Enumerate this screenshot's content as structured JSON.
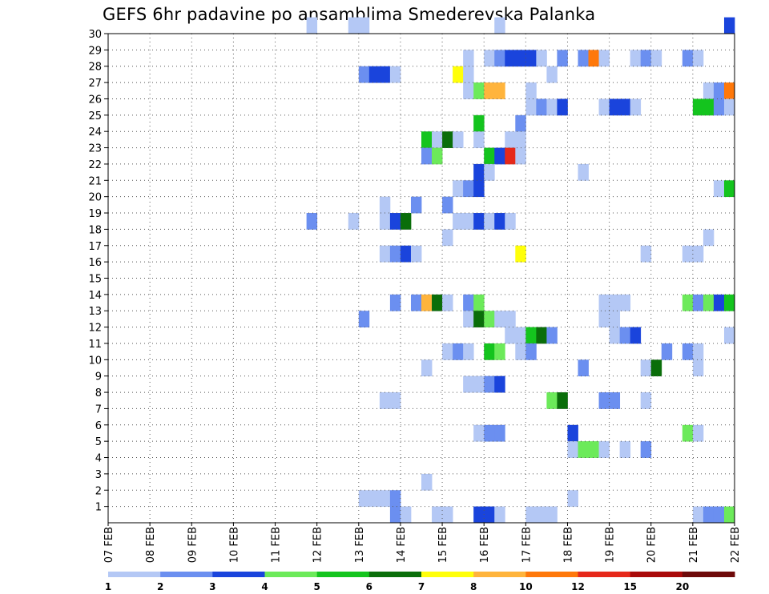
{
  "chart_data": {
    "type": "heatmap",
    "title": "GEFS 6hr padavine po ansamblima Smederevska Palanka",
    "x_ticks": [
      "07 FEB",
      "08 FEB",
      "09 FEB",
      "10 FEB",
      "11 FEB",
      "12 FEB",
      "13 FEB",
      "14 FEB",
      "15 FEB",
      "16 FEB",
      "17 FEB",
      "18 FEB",
      "19 FEB",
      "20 FEB",
      "21 FEB",
      "22 FEB"
    ],
    "y_ticks": [
      "1",
      "2",
      "3",
      "4",
      "5",
      "6",
      "7",
      "8",
      "9",
      "10",
      "11",
      "12",
      "13",
      "14",
      "15",
      "16",
      "17",
      "18",
      "19",
      "20",
      "21",
      "22",
      "23",
      "24",
      "25",
      "26",
      "27",
      "28",
      "29",
      "30"
    ],
    "xlim": [
      "07 FEB 00",
      "22 FEB 00"
    ],
    "ylim": [
      0,
      30
    ],
    "time_step_hours": 6,
    "grid": "dotted",
    "colorbar": {
      "placement": "bottom",
      "labels": [
        "1",
        "2",
        "3",
        "4",
        "5",
        "6",
        "7",
        "8",
        "10",
        "12",
        "15",
        "20"
      ],
      "colors": [
        "#b4c8f5",
        "#6b8ff0",
        "#1a44dc",
        "#6cea5a",
        "#14c41e",
        "#0a6e0a",
        "#ffff0a",
        "#ffb43c",
        "#ff780a",
        "#e6281a",
        "#aa0a0a",
        "#6e0a0a"
      ]
    },
    "points": [
      {
        "m": 30,
        "t": "11 FEB 18",
        "c": 1
      },
      {
        "m": 30,
        "t": "12 FEB 18",
        "c": 1
      },
      {
        "m": 30,
        "t": "13 FEB 00",
        "c": 1
      },
      {
        "m": 30,
        "t": "16 FEB 06",
        "c": 1
      },
      {
        "m": 30,
        "t": "21 FEB 18",
        "c": 3
      },
      {
        "m": 28,
        "t": "15 FEB 12",
        "c": 1
      },
      {
        "m": 28,
        "t": "16 FEB 00",
        "c": 1
      },
      {
        "m": 28,
        "t": "16 FEB 06",
        "c": 2
      },
      {
        "m": 28,
        "t": "16 FEB 12",
        "c": 3
      },
      {
        "m": 28,
        "t": "16 FEB 18",
        "c": 3
      },
      {
        "m": 28,
        "t": "17 FEB 00",
        "c": 3
      },
      {
        "m": 28,
        "t": "17 FEB 06",
        "c": 1
      },
      {
        "m": 28,
        "t": "17 FEB 18",
        "c": 2
      },
      {
        "m": 28,
        "t": "18 FEB 06",
        "c": 2
      },
      {
        "m": 28,
        "t": "18 FEB 12",
        "c": 9
      },
      {
        "m": 28,
        "t": "18 FEB 18",
        "c": 1
      },
      {
        "m": 28,
        "t": "19 FEB 12",
        "c": 1
      },
      {
        "m": 28,
        "t": "19 FEB 18",
        "c": 2
      },
      {
        "m": 28,
        "t": "20 FEB 00",
        "c": 1
      },
      {
        "m": 28,
        "t": "20 FEB 18",
        "c": 2
      },
      {
        "m": 28,
        "t": "21 FEB 00",
        "c": 1
      },
      {
        "m": 27,
        "t": "13 FEB 00",
        "c": 2
      },
      {
        "m": 27,
        "t": "13 FEB 06",
        "c": 3
      },
      {
        "m": 27,
        "t": "13 FEB 12",
        "c": 3
      },
      {
        "m": 27,
        "t": "13 FEB 18",
        "c": 1
      },
      {
        "m": 27,
        "t": "15 FEB 06",
        "c": 7
      },
      {
        "m": 27,
        "t": "15 FEB 12",
        "c": 1
      },
      {
        "m": 27,
        "t": "17 FEB 12",
        "c": 1
      },
      {
        "m": 26,
        "t": "15 FEB 12",
        "c": 1
      },
      {
        "m": 26,
        "t": "15 FEB 18",
        "c": 4
      },
      {
        "m": 26,
        "t": "16 FEB 00",
        "c": 8
      },
      {
        "m": 26,
        "t": "16 FEB 06",
        "c": 8
      },
      {
        "m": 26,
        "t": "17 FEB 00",
        "c": 1
      },
      {
        "m": 26,
        "t": "21 FEB 06",
        "c": 1
      },
      {
        "m": 26,
        "t": "21 FEB 12",
        "c": 2
      },
      {
        "m": 26,
        "t": "21 FEB 18",
        "c": 9
      },
      {
        "m": 25,
        "t": "17 FEB 00",
        "c": 1
      },
      {
        "m": 25,
        "t": "17 FEB 06",
        "c": 2
      },
      {
        "m": 25,
        "t": "17 FEB 12",
        "c": 1
      },
      {
        "m": 25,
        "t": "17 FEB 18",
        "c": 3
      },
      {
        "m": 25,
        "t": "18 FEB 18",
        "c": 1
      },
      {
        "m": 25,
        "t": "19 FEB 00",
        "c": 3
      },
      {
        "m": 25,
        "t": "19 FEB 06",
        "c": 3
      },
      {
        "m": 25,
        "t": "19 FEB 12",
        "c": 1
      },
      {
        "m": 25,
        "t": "21 FEB 00",
        "c": 5
      },
      {
        "m": 25,
        "t": "21 FEB 06",
        "c": 5
      },
      {
        "m": 25,
        "t": "21 FEB 12",
        "c": 2
      },
      {
        "m": 25,
        "t": "21 FEB 18",
        "c": 1
      },
      {
        "m": 24,
        "t": "15 FEB 18",
        "c": 5
      },
      {
        "m": 24,
        "t": "16 FEB 18",
        "c": 2
      },
      {
        "m": 23,
        "t": "14 FEB 12",
        "c": 5
      },
      {
        "m": 23,
        "t": "14 FEB 18",
        "c": 1
      },
      {
        "m": 23,
        "t": "15 FEB 00",
        "c": 6
      },
      {
        "m": 23,
        "t": "15 FEB 06",
        "c": 1
      },
      {
        "m": 23,
        "t": "15 FEB 18",
        "c": 1
      },
      {
        "m": 23,
        "t": "16 FEB 12",
        "c": 1
      },
      {
        "m": 23,
        "t": "16 FEB 18",
        "c": 1
      },
      {
        "m": 22,
        "t": "14 FEB 12",
        "c": 2
      },
      {
        "m": 22,
        "t": "14 FEB 18",
        "c": 4
      },
      {
        "m": 22,
        "t": "16 FEB 00",
        "c": 5
      },
      {
        "m": 22,
        "t": "16 FEB 06",
        "c": 3
      },
      {
        "m": 22,
        "t": "16 FEB 12",
        "c": 10
      },
      {
        "m": 22,
        "t": "16 FEB 18",
        "c": 1
      },
      {
        "m": 21,
        "t": "15 FEB 18",
        "c": 3
      },
      {
        "m": 21,
        "t": "16 FEB 00",
        "c": 1
      },
      {
        "m": 21,
        "t": "18 FEB 06",
        "c": 1
      },
      {
        "m": 20,
        "t": "15 FEB 06",
        "c": 1
      },
      {
        "m": 20,
        "t": "15 FEB 12",
        "c": 2
      },
      {
        "m": 20,
        "t": "15 FEB 18",
        "c": 3
      },
      {
        "m": 20,
        "t": "21 FEB 12",
        "c": 1
      },
      {
        "m": 20,
        "t": "21 FEB 18",
        "c": 5
      },
      {
        "m": 19,
        "t": "13 FEB 12",
        "c": 1
      },
      {
        "m": 19,
        "t": "14 FEB 06",
        "c": 2
      },
      {
        "m": 19,
        "t": "15 FEB 00",
        "c": 2
      },
      {
        "m": 18,
        "t": "11 FEB 18",
        "c": 2
      },
      {
        "m": 18,
        "t": "12 FEB 18",
        "c": 1
      },
      {
        "m": 18,
        "t": "13 FEB 12",
        "c": 1
      },
      {
        "m": 18,
        "t": "13 FEB 18",
        "c": 3
      },
      {
        "m": 18,
        "t": "14 FEB 00",
        "c": 6
      },
      {
        "m": 18,
        "t": "15 FEB 06",
        "c": 1
      },
      {
        "m": 18,
        "t": "15 FEB 12",
        "c": 1
      },
      {
        "m": 18,
        "t": "15 FEB 18",
        "c": 3
      },
      {
        "m": 18,
        "t": "16 FEB 00",
        "c": 1
      },
      {
        "m": 18,
        "t": "16 FEB 06",
        "c": 3
      },
      {
        "m": 18,
        "t": "16 FEB 12",
        "c": 1
      },
      {
        "m": 17,
        "t": "15 FEB 00",
        "c": 1
      },
      {
        "m": 17,
        "t": "21 FEB 06",
        "c": 1
      },
      {
        "m": 16,
        "t": "13 FEB 12",
        "c": 1
      },
      {
        "m": 16,
        "t": "13 FEB 18",
        "c": 2
      },
      {
        "m": 16,
        "t": "14 FEB 00",
        "c": 3
      },
      {
        "m": 16,
        "t": "14 FEB 06",
        "c": 1
      },
      {
        "m": 16,
        "t": "16 FEB 18",
        "c": 7
      },
      {
        "m": 16,
        "t": "19 FEB 18",
        "c": 1
      },
      {
        "m": 16,
        "t": "20 FEB 18",
        "c": 1
      },
      {
        "m": 16,
        "t": "21 FEB 00",
        "c": 1
      },
      {
        "m": 13,
        "t": "13 FEB 18",
        "c": 2
      },
      {
        "m": 13,
        "t": "14 FEB 06",
        "c": 2
      },
      {
        "m": 13,
        "t": "14 FEB 12",
        "c": 8
      },
      {
        "m": 13,
        "t": "14 FEB 18",
        "c": 6
      },
      {
        "m": 13,
        "t": "15 FEB 00",
        "c": 1
      },
      {
        "m": 13,
        "t": "15 FEB 12",
        "c": 2
      },
      {
        "m": 13,
        "t": "15 FEB 18",
        "c": 4
      },
      {
        "m": 13,
        "t": "18 FEB 18",
        "c": 1
      },
      {
        "m": 13,
        "t": "19 FEB 00",
        "c": 1
      },
      {
        "m": 13,
        "t": "19 FEB 06",
        "c": 1
      },
      {
        "m": 13,
        "t": "20 FEB 18",
        "c": 4
      },
      {
        "m": 13,
        "t": "21 FEB 00",
        "c": 2
      },
      {
        "m": 13,
        "t": "21 FEB 06",
        "c": 4
      },
      {
        "m": 13,
        "t": "21 FEB 12",
        "c": 3
      },
      {
        "m": 13,
        "t": "21 FEB 18",
        "c": 5
      },
      {
        "m": 12,
        "t": "13 FEB 00",
        "c": 2
      },
      {
        "m": 12,
        "t": "15 FEB 12",
        "c": 1
      },
      {
        "m": 12,
        "t": "15 FEB 18",
        "c": 6
      },
      {
        "m": 12,
        "t": "16 FEB 00",
        "c": 4
      },
      {
        "m": 12,
        "t": "16 FEB 06",
        "c": 1
      },
      {
        "m": 12,
        "t": "16 FEB 12",
        "c": 1
      },
      {
        "m": 12,
        "t": "18 FEB 18",
        "c": 1
      },
      {
        "m": 12,
        "t": "19 FEB 00",
        "c": 1
      },
      {
        "m": 11,
        "t": "16 FEB 12",
        "c": 1
      },
      {
        "m": 11,
        "t": "16 FEB 18",
        "c": 1
      },
      {
        "m": 11,
        "t": "17 FEB 00",
        "c": 5
      },
      {
        "m": 11,
        "t": "17 FEB 06",
        "c": 6
      },
      {
        "m": 11,
        "t": "17 FEB 12",
        "c": 2
      },
      {
        "m": 11,
        "t": "19 FEB 00",
        "c": 1
      },
      {
        "m": 11,
        "t": "19 FEB 06",
        "c": 2
      },
      {
        "m": 11,
        "t": "19 FEB 12",
        "c": 3
      },
      {
        "m": 11,
        "t": "21 FEB 18",
        "c": 1
      },
      {
        "m": 10,
        "t": "15 FEB 00",
        "c": 1
      },
      {
        "m": 10,
        "t": "15 FEB 06",
        "c": 2
      },
      {
        "m": 10,
        "t": "15 FEB 12",
        "c": 1
      },
      {
        "m": 10,
        "t": "16 FEB 00",
        "c": 5
      },
      {
        "m": 10,
        "t": "16 FEB 06",
        "c": 4
      },
      {
        "m": 10,
        "t": "16 FEB 18",
        "c": 1
      },
      {
        "m": 10,
        "t": "17 FEB 00",
        "c": 2
      },
      {
        "m": 10,
        "t": "20 FEB 06",
        "c": 2
      },
      {
        "m": 10,
        "t": "20 FEB 18",
        "c": 2
      },
      {
        "m": 10,
        "t": "21 FEB 00",
        "c": 1
      },
      {
        "m": 9,
        "t": "14 FEB 12",
        "c": 1
      },
      {
        "m": 9,
        "t": "18 FEB 06",
        "c": 2
      },
      {
        "m": 9,
        "t": "19 FEB 18",
        "c": 1
      },
      {
        "m": 9,
        "t": "20 FEB 00",
        "c": 6
      },
      {
        "m": 9,
        "t": "21 FEB 00",
        "c": 1
      },
      {
        "m": 8,
        "t": "15 FEB 12",
        "c": 1
      },
      {
        "m": 8,
        "t": "15 FEB 18",
        "c": 1
      },
      {
        "m": 8,
        "t": "16 FEB 00",
        "c": 2
      },
      {
        "m": 8,
        "t": "16 FEB 06",
        "c": 3
      },
      {
        "m": 7,
        "t": "13 FEB 12",
        "c": 1
      },
      {
        "m": 7,
        "t": "13 FEB 18",
        "c": 1
      },
      {
        "m": 7,
        "t": "17 FEB 12",
        "c": 4
      },
      {
        "m": 7,
        "t": "17 FEB 18",
        "c": 6
      },
      {
        "m": 7,
        "t": "18 FEB 18",
        "c": 2
      },
      {
        "m": 7,
        "t": "19 FEB 00",
        "c": 2
      },
      {
        "m": 7,
        "t": "19 FEB 18",
        "c": 1
      },
      {
        "m": 5,
        "t": "15 FEB 18",
        "c": 1
      },
      {
        "m": 5,
        "t": "16 FEB 00",
        "c": 2
      },
      {
        "m": 5,
        "t": "16 FEB 06",
        "c": 2
      },
      {
        "m": 5,
        "t": "18 FEB 00",
        "c": 3
      },
      {
        "m": 5,
        "t": "20 FEB 18",
        "c": 4
      },
      {
        "m": 5,
        "t": "21 FEB 00",
        "c": 1
      },
      {
        "m": 4,
        "t": "18 FEB 00",
        "c": 1
      },
      {
        "m": 4,
        "t": "18 FEB 06",
        "c": 4
      },
      {
        "m": 4,
        "t": "18 FEB 12",
        "c": 4
      },
      {
        "m": 4,
        "t": "18 FEB 18",
        "c": 1
      },
      {
        "m": 4,
        "t": "19 FEB 06",
        "c": 1
      },
      {
        "m": 4,
        "t": "19 FEB 18",
        "c": 2
      },
      {
        "m": 2,
        "t": "14 FEB 12",
        "c": 1
      },
      {
        "m": 1,
        "t": "13 FEB 00",
        "c": 1
      },
      {
        "m": 1,
        "t": "13 FEB 06",
        "c": 1
      },
      {
        "m": 1,
        "t": "13 FEB 12",
        "c": 1
      },
      {
        "m": 1,
        "t": "13 FEB 18",
        "c": 2
      },
      {
        "m": 1,
        "t": "18 FEB 00",
        "c": 1
      },
      {
        "m": 0,
        "t": "13 FEB 18",
        "c": 2
      },
      {
        "m": 0,
        "t": "14 FEB 00",
        "c": 1
      },
      {
        "m": 0,
        "t": "14 FEB 18",
        "c": 1
      },
      {
        "m": 0,
        "t": "15 FEB 00",
        "c": 1
      },
      {
        "m": 0,
        "t": "15 FEB 18",
        "c": 3
      },
      {
        "m": 0,
        "t": "16 FEB 00",
        "c": 3
      },
      {
        "m": 0,
        "t": "16 FEB 06",
        "c": 1
      },
      {
        "m": 0,
        "t": "17 FEB 00",
        "c": 1
      },
      {
        "m": 0,
        "t": "17 FEB 06",
        "c": 1
      },
      {
        "m": 0,
        "t": "17 FEB 12",
        "c": 1
      },
      {
        "m": 0,
        "t": "21 FEB 00",
        "c": 1
      },
      {
        "m": 0,
        "t": "21 FEB 06",
        "c": 2
      },
      {
        "m": 0,
        "t": "21 FEB 12",
        "c": 2
      },
      {
        "m": 0,
        "t": "21 FEB 18",
        "c": 4
      }
    ]
  }
}
